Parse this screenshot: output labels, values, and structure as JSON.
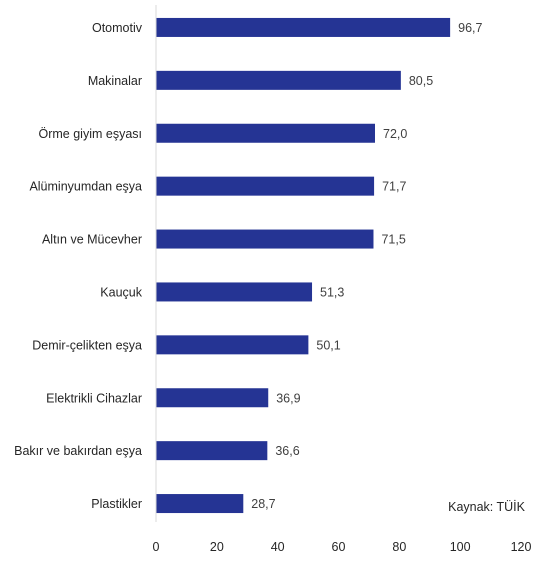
{
  "chart_data": {
    "type": "bar",
    "orientation": "horizontal",
    "categories": [
      "Otomotiv",
      "Makinalar",
      "Örme giyim eşyası",
      "Alüminyumdan eşya",
      "Altın ve Mücevher",
      "Kauçuk",
      "Demir-çelikten eşya",
      "Elektrikli Cihazlar",
      "Bakır ve bakırdan eşya",
      "Plastikler"
    ],
    "values": [
      96.7,
      80.5,
      72.0,
      71.7,
      71.5,
      51.3,
      50.1,
      36.9,
      36.6,
      28.7
    ],
    "value_labels": [
      "96,7",
      "80,5",
      "72,0",
      "71,7",
      "71,5",
      "51,3",
      "50,1",
      "36,9",
      "36,6",
      "28,7"
    ],
    "xlim": [
      0,
      120
    ],
    "xticks": [
      "0",
      "20",
      "40",
      "60",
      "80",
      "100",
      "120"
    ],
    "title": "",
    "xlabel": "",
    "ylabel": "",
    "grid": false,
    "bar_color": "#253494"
  },
  "source_note": "Kaynak: TÜİK"
}
